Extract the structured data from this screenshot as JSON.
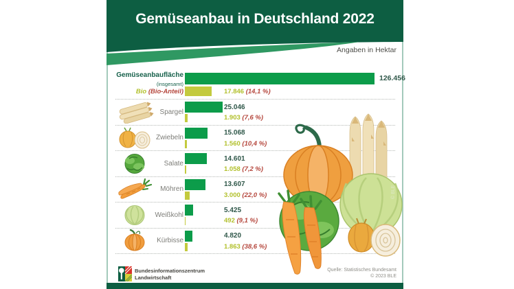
{
  "header": {
    "title": "Gemüseanbau in Deutschland 2022",
    "subtitle": "Angaben in Hektar"
  },
  "colors": {
    "header_green": "#0d5e42",
    "swoosh_green": "#2f9862",
    "bar_green": "#0c9c4a",
    "bio_bar": "#c3ca3e",
    "bio_text": "#b2c02c",
    "pct_red": "#b5473d",
    "value_dark": "#30584a",
    "dark_label": "#17614b",
    "label_gray": "#7d7d78",
    "border_teal": "#a3cabb"
  },
  "chart_data": {
    "type": "bar",
    "title": "Gemüseanbau in Deutschland 2022",
    "unit_note": "Angaben in Hektar",
    "unit": "Hektar",
    "orientation": "horizontal",
    "max_value": 126456,
    "rows": [
      {
        "id": "total",
        "label": "Gemüseanbaufläche",
        "sublabel": "(insgesamt)",
        "value": 126456,
        "value_display": "126.456"
      },
      {
        "id": "bio",
        "label": "Bio",
        "sublabel": "(Bio-Anteil)",
        "value": 17846,
        "value_display": "17.846",
        "pct_display": "(14,1 %)"
      },
      {
        "id": "spargel",
        "label": "Spargel",
        "icon": "asparagus-icon",
        "value": 25046,
        "value_display": "25.046",
        "bio_value": 1903,
        "bio_display": "1.903",
        "bio_pct": "(7,6 %)"
      },
      {
        "id": "zwiebeln",
        "label": "Zwiebeln",
        "icon": "onion-icon",
        "value": 15068,
        "value_display": "15.068",
        "bio_value": 1560,
        "bio_display": "1.560",
        "bio_pct": "(10,4 %)"
      },
      {
        "id": "salate",
        "label": "Salate",
        "icon": "lettuce-icon",
        "value": 14601,
        "value_display": "14.601",
        "bio_value": 1058,
        "bio_display": "1.058",
        "bio_pct": "(7,2 %)"
      },
      {
        "id": "moehren",
        "label": "Möhren",
        "icon": "carrot-icon",
        "value": 13607,
        "value_display": "13.607",
        "bio_value": 3000,
        "bio_display": "3.000",
        "bio_pct": "(22,0 %)"
      },
      {
        "id": "weisskohl",
        "label": "Weißkohl",
        "icon": "cabbage-icon",
        "value": 5425,
        "value_display": "5.425",
        "bio_value": 492,
        "bio_display": "492",
        "bio_pct": "(9,1 %)"
      },
      {
        "id": "kuerbisse",
        "label": "Kürbisse",
        "icon": "pumpkin-icon",
        "value": 4820,
        "value_display": "4.820",
        "bio_value": 1863,
        "bio_display": "1.863",
        "bio_pct": "(38,6 %)"
      }
    ]
  },
  "illustration": {
    "credit": "© BLE"
  },
  "footer": {
    "org_line1": "Bundesinformationszentrum",
    "org_line2": "Landwirtschaft",
    "source_line1": "Quelle: Statistisches Bundesamt",
    "source_line2": "© 2023 BLE"
  }
}
